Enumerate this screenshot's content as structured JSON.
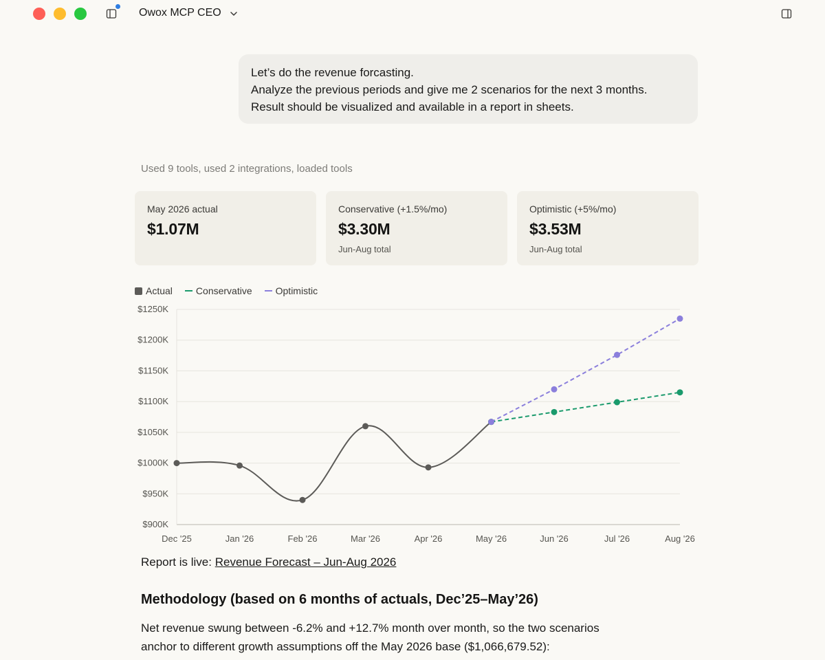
{
  "window": {
    "project_title": "Owox MCP CEO"
  },
  "conversation": {
    "user_message": [
      "Let’s do the revenue forcasting.",
      "Analyze the previous periods and give me 2 scenarios for the next 3 months.",
      "Result should be visualized and available in a report in sheets."
    ],
    "tools_summary": "Used 9 tools, used 2 integrations, loaded tools"
  },
  "stats": [
    {
      "label": "May 2026 actual",
      "value": "$1.07M",
      "sub": ""
    },
    {
      "label": "Conservative (+1.5%/mo)",
      "value": "$3.30M",
      "sub": "Jun-Aug total"
    },
    {
      "label": "Optimistic (+5%/mo)",
      "value": "$3.53M",
      "sub": "Jun-Aug total"
    }
  ],
  "legend": [
    {
      "label": "Actual",
      "color": "#5c5b58",
      "style": "square"
    },
    {
      "label": "Conservative",
      "color": "#1a9a6c",
      "style": "line"
    },
    {
      "label": "Optimistic",
      "color": "#8b7fdc",
      "style": "line"
    }
  ],
  "chart_data": {
    "type": "line",
    "categories": [
      "Dec '25",
      "Jan '26",
      "Feb '26",
      "Mar '26",
      "Apr '26",
      "May '26",
      "Jun '26",
      "Jul '26",
      "Aug '26"
    ],
    "ylim": [
      900,
      1250
    ],
    "yticks": [
      900,
      950,
      1000,
      1050,
      1100,
      1150,
      1200,
      1250
    ],
    "ytick_labels": [
      "$900K",
      "$950K",
      "$1000K",
      "$1050K",
      "$1100K",
      "$1150K",
      "$1200K",
      "$1250K"
    ],
    "grid": true,
    "legend_position": "top-left",
    "series": [
      {
        "name": "Actual",
        "color": "#5c5b58",
        "dashed": false,
        "values": [
          1000,
          996,
          940,
          1060,
          993,
          1067,
          null,
          null,
          null
        ]
      },
      {
        "name": "Conservative",
        "color": "#1a9a6c",
        "dashed": true,
        "values": [
          null,
          null,
          null,
          null,
          null,
          1067,
          1083,
          1099,
          1115
        ]
      },
      {
        "name": "Optimistic",
        "color": "#8b7fdc",
        "dashed": true,
        "values": [
          null,
          null,
          null,
          null,
          null,
          1067,
          1120,
          1176,
          1235
        ]
      }
    ]
  },
  "report": {
    "prefix": "Report is live:",
    "link_text": "Revenue Forecast – Jun-Aug 2026"
  },
  "methodology": {
    "heading": "Methodology (based on 6 months of actuals, Dec’25–May’26)",
    "body": [
      "Net revenue swung between -6.2% and +12.7% month over month, so the two scenarios",
      "anchor to different growth assumptions off the May 2026 base ($1,066,679.52):"
    ]
  }
}
